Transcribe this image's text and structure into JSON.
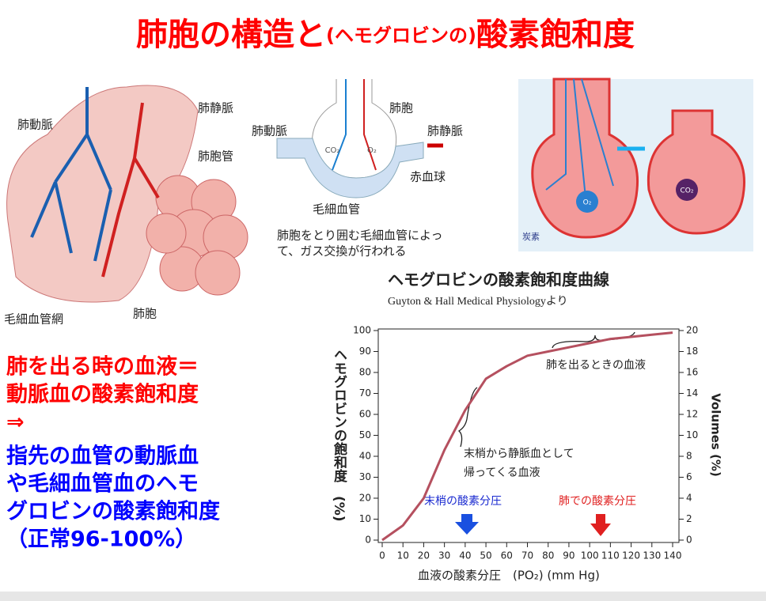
{
  "slide": {
    "title": [
      "肺胞の構造と",
      "(ヘモグロビンの)",
      "酸素飽和度"
    ],
    "lung_labels": [
      "肺動脈",
      "肺静脈",
      "肺胞管",
      "毛細血管網",
      "肺胞"
    ],
    "exchange": {
      "left": "肺動脈",
      "top": "肺胞",
      "right": "肺静脈",
      "co2": "CO₂",
      "o2": "O₂",
      "rbc": "赤血球",
      "capillary": "毛細血管",
      "caption": [
        "肺胞をとり囲む毛細血管によっ",
        "て、ガス交換が行われる"
      ]
    },
    "right_image": {
      "o2": "O₂",
      "co2": "CO₂",
      "note": "炭素"
    },
    "red_text": [
      "肺を出る時の血液＝",
      "動脈血の酸素飽和度",
      "⇒"
    ],
    "blue_text": [
      "指先の血管の動脈血",
      "や毛細血管血のヘモ",
      "グロビンの酸素飽和度",
      "（正常96-100%）"
    ]
  },
  "chart_data": {
    "type": "line",
    "title": "ヘモグロビンの酸素飽和度曲線",
    "subtitle": "Guyton & Hall  Medical Physiologyより",
    "x_label": "血液の酸素分圧　(PO₂) (mm Hg)",
    "y_label": "ヘモグロビンの飽和度　(%)",
    "y2_label": "Volumes (%)",
    "x": [
      0,
      10,
      20,
      30,
      40,
      50,
      60,
      70,
      80,
      90,
      100,
      110,
      120,
      130,
      140
    ],
    "series": [
      {
        "name": "酸素飽和度",
        "color": "#b5505f",
        "values": [
          0,
          7,
          20,
          43,
          62,
          77,
          83,
          88,
          90,
          92,
          94,
          96,
          97,
          98,
          99
        ]
      }
    ],
    "xlim": [
      0,
      140
    ],
    "xticks": [
      0,
      10,
      20,
      30,
      40,
      50,
      60,
      70,
      80,
      90,
      100,
      110,
      120,
      130,
      140
    ],
    "ylim": [
      0,
      100
    ],
    "yticks": [
      0,
      10,
      20,
      30,
      40,
      50,
      60,
      70,
      80,
      90,
      100
    ],
    "y2lim": [
      0,
      20
    ],
    "y2ticks": [
      0,
      2,
      4,
      6,
      8,
      10,
      12,
      14,
      16,
      18,
      20
    ],
    "grid": false,
    "annotations": [
      "肺を出るときの血液",
      "末梢から静脈血として",
      "帰ってくる血液",
      "末梢の酸素分圧",
      "肺での酸素分圧"
    ]
  }
}
